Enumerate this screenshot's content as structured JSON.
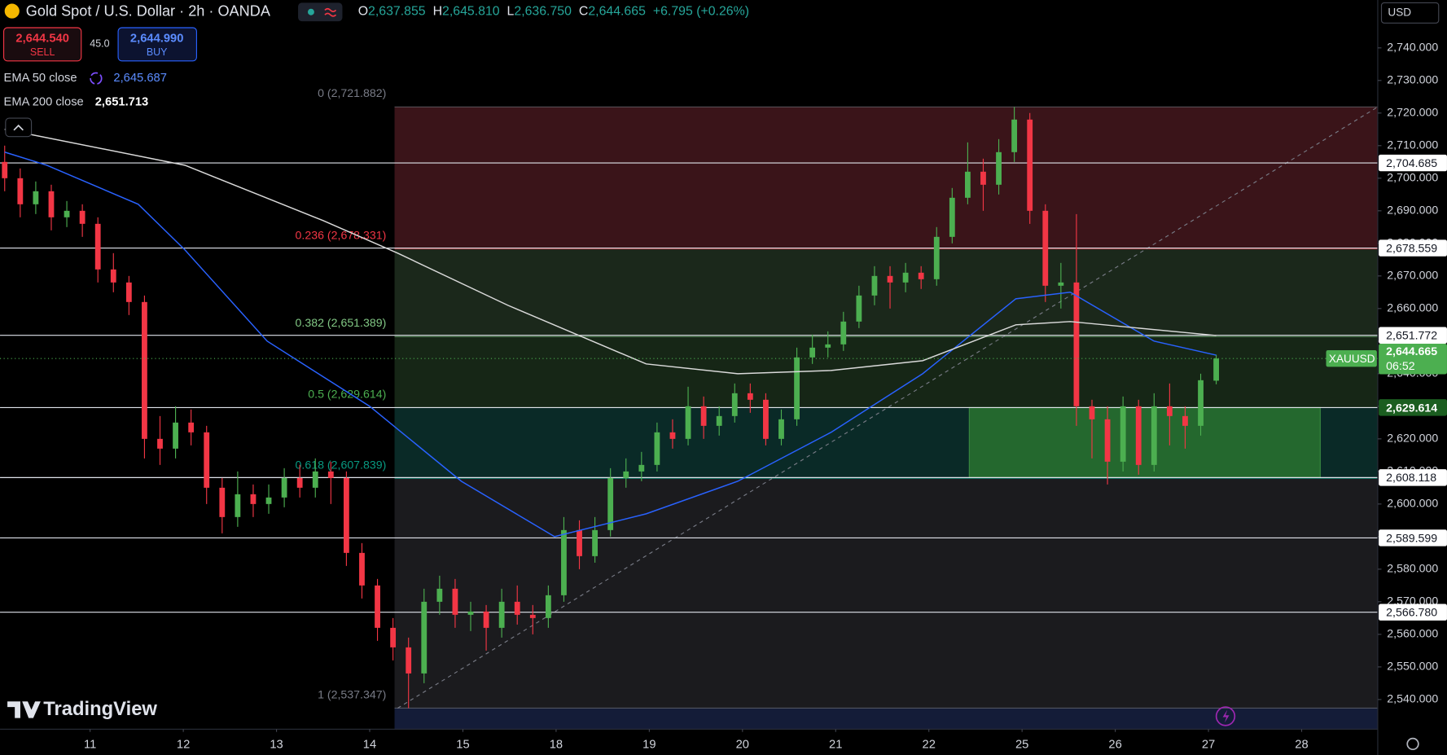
{
  "header": {
    "symbol": "Gold Spot / U.S. Dollar · 2h · OANDA",
    "open_label": "O",
    "open": "2,637.855",
    "high_label": "H",
    "high": "2,645.810",
    "low_label": "L",
    "low": "2,636.750",
    "close_label": "C",
    "close": "2,644.665",
    "change": "+6.795 (+0.26%)",
    "sell_price": "2,644.540",
    "sell": "SELL",
    "spread": "45.0",
    "buy_price": "2,644.990",
    "buy": "BUY",
    "ema50_value": "2,645.687",
    "ema200_value": "2,651.713",
    "currency": "USD",
    "logo": "TradingView"
  },
  "chart_data": {
    "type": "candlestick",
    "grid": false,
    "xlim": [
      -0.3,
      88.4
    ],
    "ylim": [
      2530.9,
      2754.7
    ],
    "xticks": [
      {
        "value": 5.5,
        "label": "11"
      },
      {
        "value": 11.5,
        "label": "12"
      },
      {
        "value": 17.5,
        "label": "13"
      },
      {
        "value": 23.5,
        "label": "14"
      },
      {
        "value": 29.5,
        "label": "15"
      },
      {
        "value": 35.5,
        "label": "18"
      },
      {
        "value": 41.5,
        "label": "19"
      },
      {
        "value": 47.5,
        "label": "20"
      },
      {
        "value": 53.5,
        "label": "21"
      },
      {
        "value": 59.5,
        "label": "22"
      },
      {
        "value": 65.5,
        "label": "25"
      },
      {
        "value": 71.5,
        "label": "26"
      },
      {
        "value": 77.5,
        "label": "27"
      },
      {
        "value": 83.5,
        "label": "28"
      }
    ],
    "yticks": [
      {
        "value": 2540,
        "label": "2,540.000"
      },
      {
        "value": 2550,
        "label": "2,550.000"
      },
      {
        "value": 2560,
        "label": "2,560.000"
      },
      {
        "value": 2570,
        "label": "2,570.000"
      },
      {
        "value": 2580,
        "label": "2,580.000"
      },
      {
        "value": 2590,
        "label": "2,590.000"
      },
      {
        "value": 2600,
        "label": "2,600.000"
      },
      {
        "value": 2610,
        "label": "2,610.000"
      },
      {
        "value": 2620,
        "label": "2,620.000"
      },
      {
        "value": 2630,
        "label": "2,630.000"
      },
      {
        "value": 2640,
        "label": "2,640.000"
      },
      {
        "value": 2650,
        "label": "2,650.000"
      },
      {
        "value": 2660,
        "label": "2,660.000"
      },
      {
        "value": 2670,
        "label": "2,670.000"
      },
      {
        "value": 2680,
        "label": "2,680.000"
      },
      {
        "value": 2690,
        "label": "2,690.000"
      },
      {
        "value": 2700,
        "label": "2,700.000"
      },
      {
        "value": 2710,
        "label": "2,710.000"
      },
      {
        "value": 2720,
        "label": "2,720.000"
      },
      {
        "value": 2730,
        "label": "2,730.000"
      },
      {
        "value": 2740,
        "label": "2,740.000"
      }
    ],
    "up_color": "#4caf50",
    "down_color": "#f23645",
    "candles": [
      [
        2705,
        2710,
        2696,
        2700
      ],
      [
        2700,
        2703,
        2688,
        2692
      ],
      [
        2692,
        2699,
        2689,
        2696
      ],
      [
        2696,
        2698,
        2684,
        2688
      ],
      [
        2688,
        2693,
        2685,
        2690
      ],
      [
        2690,
        2692,
        2682,
        2686
      ],
      [
        2686,
        2688,
        2668,
        2672
      ],
      [
        2672,
        2677,
        2665,
        2668
      ],
      [
        2668,
        2670,
        2658,
        2662
      ],
      [
        2662,
        2664,
        2614,
        2620
      ],
      [
        2620,
        2627,
        2612,
        2617
      ],
      [
        2617,
        2630,
        2614,
        2625
      ],
      [
        2625,
        2629,
        2618,
        2622
      ],
      [
        2622,
        2624,
        2600,
        2605
      ],
      [
        2605,
        2608,
        2591,
        2596
      ],
      [
        2596,
        2610,
        2593,
        2603
      ],
      [
        2603,
        2606,
        2596,
        2600
      ],
      [
        2600,
        2606,
        2597,
        2602
      ],
      [
        2602,
        2611,
        2599,
        2608
      ],
      [
        2608,
        2612,
        2602,
        2605
      ],
      [
        2605,
        2614,
        2602,
        2610
      ],
      [
        2610,
        2613,
        2600,
        2608
      ],
      [
        2608,
        2610,
        2581,
        2585
      ],
      [
        2585,
        2588,
        2571,
        2575
      ],
      [
        2575,
        2577,
        2558,
        2562
      ],
      [
        2562,
        2565,
        2552,
        2556
      ],
      [
        2556,
        2559,
        2537.347,
        2548
      ],
      [
        2548,
        2574,
        2545,
        2570
      ],
      [
        2570,
        2578,
        2566,
        2574
      ],
      [
        2574,
        2577,
        2562,
        2566
      ],
      [
        2566,
        2570,
        2561,
        2567
      ],
      [
        2567,
        2569,
        2555,
        2562
      ],
      [
        2562,
        2574,
        2559,
        2570
      ],
      [
        2570,
        2575,
        2563,
        2566
      ],
      [
        2566,
        2569,
        2560,
        2565
      ],
      [
        2565,
        2575,
        2562,
        2572
      ],
      [
        2572,
        2596,
        2570,
        2592
      ],
      [
        2592,
        2595,
        2580,
        2584
      ],
      [
        2584,
        2596,
        2582,
        2592
      ],
      [
        2592,
        2611,
        2590,
        2608
      ],
      [
        2608,
        2614,
        2605,
        2610
      ],
      [
        2610,
        2616,
        2607,
        2612
      ],
      [
        2612,
        2625,
        2610,
        2622
      ],
      [
        2622,
        2626,
        2617,
        2620
      ],
      [
        2620,
        2636,
        2618,
        2630
      ],
      [
        2630,
        2633,
        2620,
        2624
      ],
      [
        2624,
        2630,
        2621,
        2627
      ],
      [
        2627,
        2637,
        2625,
        2634
      ],
      [
        2634,
        2637,
        2628,
        2632
      ],
      [
        2632,
        2634,
        2618,
        2620
      ],
      [
        2620,
        2629,
        2618,
        2626
      ],
      [
        2626,
        2648,
        2624,
        2645
      ],
      [
        2645,
        2652,
        2643,
        2648
      ],
      [
        2648,
        2653,
        2645,
        2649
      ],
      [
        2649,
        2659,
        2647,
        2656
      ],
      [
        2656,
        2667,
        2654,
        2664
      ],
      [
        2664,
        2673,
        2661,
        2670
      ],
      [
        2670,
        2673,
        2660,
        2668
      ],
      [
        2668,
        2674,
        2665,
        2671
      ],
      [
        2671,
        2673,
        2666,
        2669
      ],
      [
        2669,
        2685,
        2667,
        2682
      ],
      [
        2682,
        2697,
        2680,
        2694
      ],
      [
        2694,
        2711,
        2692,
        2702
      ],
      [
        2702,
        2706,
        2690,
        2698
      ],
      [
        2698,
        2712,
        2695,
        2708
      ],
      [
        2708,
        2721.882,
        2705,
        2718
      ],
      [
        2718,
        2720,
        2686,
        2690
      ],
      [
        2690,
        2692,
        2662,
        2667
      ],
      [
        2667,
        2674,
        2660,
        2668
      ],
      [
        2668,
        2689,
        2624,
        2630
      ],
      [
        2630,
        2632,
        2614,
        2626
      ],
      [
        2626,
        2630,
        2606,
        2613
      ],
      [
        2613,
        2633,
        2610,
        2630
      ],
      [
        2630,
        2632,
        2609,
        2612
      ],
      [
        2612,
        2634,
        2610,
        2630
      ],
      [
        2630,
        2637,
        2618,
        2627
      ],
      [
        2627,
        2630,
        2617,
        2624
      ],
      [
        2624,
        2640,
        2621,
        2638
      ],
      [
        2637.855,
        2645.81,
        2636.75,
        2644.665
      ]
    ],
    "series": [
      {
        "name": "EMA 50 close",
        "color": "#2962ff",
        "x": [
          0,
          2.7,
          8.6,
          11.6,
          16.9,
          23.5,
          29.4,
          35.4,
          41.3,
          47.2,
          53.2,
          59.1,
          65.1,
          68.6,
          74,
          78
        ],
        "values": [
          2708,
          2704,
          2692,
          2678,
          2650,
          2630,
          2607,
          2590,
          2597,
          2607,
          2622,
          2640,
          2663,
          2665,
          2650,
          2645.687
        ]
      },
      {
        "name": "EMA 200 close",
        "color": "#d9d9d9",
        "x": [
          0,
          11.6,
          20.5,
          25.3,
          32.4,
          41.3,
          47.2,
          53.2,
          59.1,
          65.1,
          68.6,
          78
        ],
        "values": [
          2715,
          2704,
          2687,
          2677,
          2661,
          2643,
          2640,
          2641,
          2644,
          2655,
          2656,
          2651.713
        ]
      }
    ],
    "fib": {
      "x_start": 25.1,
      "levels": [
        {
          "value": 2721.882,
          "label": "0 (2,721.882)",
          "color": "#787b86"
        },
        {
          "value": 2678.331,
          "label": "0.236 (2,678.331)",
          "color": "#f23645"
        },
        {
          "value": 2651.389,
          "label": "0.382 (2,651.389)",
          "color": "#81c784"
        },
        {
          "value": 2629.614,
          "label": "0.5 (2,629.614)",
          "color": "#4caf50"
        },
        {
          "value": 2607.839,
          "label": "0.618 (2,607.839)",
          "color": "#089981"
        },
        {
          "value": 2537.347,
          "label": "1 (2,537.347)",
          "color": "#787b86"
        }
      ],
      "fills": [
        "#3a1419",
        "#1b281b",
        "#162616",
        "#0a2a27",
        "#1b1b1e"
      ],
      "extension_fill": "#141c38"
    },
    "zone": {
      "x": [
        62.1,
        84.7
      ],
      "y": [
        2608.118,
        2629.614
      ],
      "color": "#2e7d32"
    },
    "trendline": {
      "x": [
        25.3,
        88.4
      ],
      "values": [
        2537.347,
        2721.882
      ],
      "color": "#787b86"
    },
    "hlines": [
      {
        "value": 2704.685,
        "label": "2,704.685",
        "tag": "#ffffff"
      },
      {
        "value": 2678.559,
        "label": "2,678.559",
        "tag": "#ffffff"
      },
      {
        "value": 2651.772,
        "label": "2,651.772",
        "tag": "#ffffff"
      },
      {
        "value": 2629.614,
        "label": "2,629.614",
        "tag": "#1b5e20"
      },
      {
        "value": 2608.118,
        "label": "2,608.118",
        "tag": "#ffffff"
      },
      {
        "value": 2589.599,
        "label": "2,589.599",
        "tag": "#ffffff"
      },
      {
        "value": 2566.78,
        "label": "2,566.780",
        "tag": "#ffffff"
      }
    ],
    "last": {
      "name": "XAUUSD",
      "value": 2644.665,
      "label": "2,644.665",
      "countdown": "06:52",
      "color": "#4caf50"
    }
  }
}
